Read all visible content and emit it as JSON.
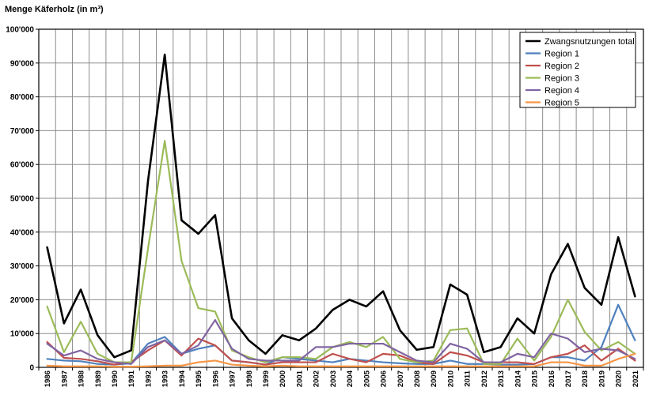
{
  "chart_data": {
    "type": "line",
    "title": "Menge Käferholz (in m³)",
    "x": [
      "1986",
      "1987",
      "1988",
      "1989",
      "1990",
      "1991",
      "1992",
      "1993",
      "1994",
      "1995",
      "1996",
      "1997",
      "1998",
      "1999",
      "2000",
      "2001",
      "2002",
      "2003",
      "2004",
      "2005",
      "2006",
      "2007",
      "2008",
      "2009",
      "2010",
      "2011",
      "2012",
      "2013",
      "2014",
      "2015",
      "2016",
      "2017",
      "2018",
      "2019",
      "2020",
      "2021"
    ],
    "ylim": [
      0,
      100000
    ],
    "yticks": [
      0,
      10000,
      20000,
      30000,
      40000,
      50000,
      60000,
      70000,
      80000,
      90000,
      100000
    ],
    "ytick_labels": [
      "0",
      "10'000",
      "20'000",
      "30'000",
      "40'000",
      "50'000",
      "60'000",
      "70'000",
      "80'000",
      "90'000",
      "100'000"
    ],
    "grid": true,
    "legend_position": "top-right",
    "series": [
      {
        "name": "Zwangsnutzungen total",
        "color": "#000000",
        "values": [
          35500,
          13000,
          23000,
          9500,
          3000,
          5000,
          55000,
          92500,
          43500,
          39500,
          45000,
          14500,
          8000,
          4000,
          9500,
          8000,
          11500,
          17000,
          20000,
          18000,
          22500,
          11000,
          5200,
          6000,
          24500,
          21500,
          4500,
          6000,
          14500,
          10000,
          27500,
          36500,
          23500,
          18500,
          38500,
          21000
        ]
      },
      {
        "name": "Region 1",
        "color": "#4f81bd",
        "values": [
          2500,
          2000,
          1800,
          1000,
          800,
          1200,
          7000,
          9000,
          4000,
          5500,
          6500,
          2000,
          1500,
          800,
          3000,
          2500,
          2000,
          1500,
          2500,
          2000,
          1500,
          1200,
          1000,
          1000,
          2000,
          1000,
          1000,
          800,
          800,
          1000,
          3000,
          3000,
          2000,
          6000,
          18500,
          8000
        ]
      },
      {
        "name": "Region 2",
        "color": "#c0504d",
        "values": [
          7500,
          2800,
          2500,
          1800,
          800,
          1500,
          5000,
          8000,
          3500,
          8500,
          6500,
          2000,
          1500,
          800,
          1500,
          1500,
          1500,
          4000,
          2500,
          1500,
          4000,
          3500,
          1500,
          1000,
          4500,
          3500,
          1500,
          1500,
          1500,
          1000,
          3000,
          4000,
          6500,
          2000,
          5500,
          2000
        ]
      },
      {
        "name": "Region 3",
        "color": "#9bbb59",
        "values": [
          18000,
          4500,
          13500,
          4000,
          1500,
          1500,
          35000,
          67000,
          31500,
          17500,
          16500,
          5000,
          3000,
          1500,
          3000,
          3000,
          2500,
          6000,
          7500,
          6000,
          9000,
          2500,
          1500,
          2000,
          11000,
          11500,
          1000,
          1000,
          8500,
          2000,
          9000,
          20000,
          10500,
          5000,
          7500,
          4000
        ]
      },
      {
        "name": "Region 4",
        "color": "#8064a2",
        "values": [
          7000,
          3500,
          5000,
          2500,
          1500,
          1000,
          6000,
          8000,
          4000,
          6500,
          14000,
          5500,
          2500,
          2000,
          2000,
          2000,
          6000,
          6000,
          7000,
          7000,
          7000,
          4500,
          2000,
          1500,
          7000,
          5500,
          1500,
          1500,
          4000,
          3000,
          10000,
          8500,
          4500,
          5500,
          5000,
          2500
        ]
      },
      {
        "name": "Region 5",
        "color": "#f79646",
        "values": [
          500,
          300,
          300,
          300,
          200,
          200,
          300,
          500,
          500,
          1500,
          2000,
          800,
          500,
          300,
          500,
          300,
          300,
          300,
          300,
          300,
          300,
          300,
          300,
          300,
          300,
          300,
          300,
          300,
          300,
          300,
          1500,
          1500,
          500,
          500,
          2500,
          4000
        ]
      }
    ]
  }
}
